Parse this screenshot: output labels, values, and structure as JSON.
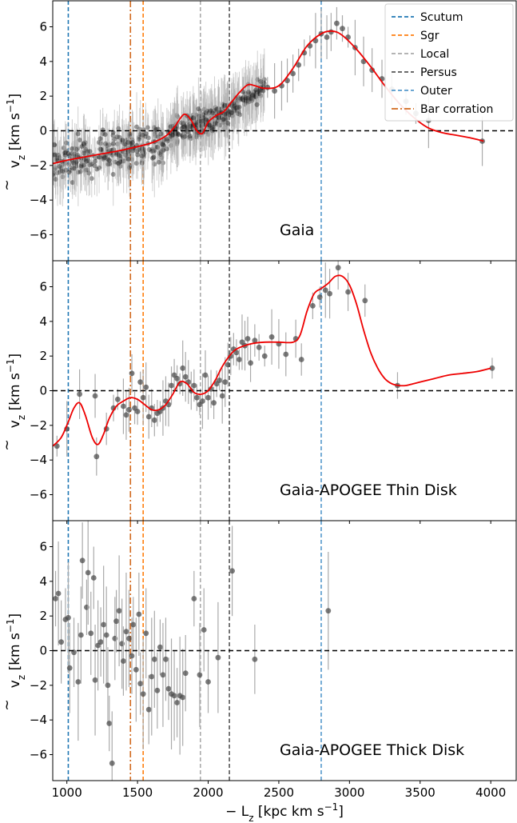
{
  "chart_data": {
    "type": "scatter",
    "xlabel": "− L_z [kpc km s⁻¹]",
    "xlabel_parts": {
      "main": "− L",
      "sub": "z",
      "unit": " [kpc km s",
      "sup": "−1",
      "close": "]"
    },
    "ylabel_parts": {
      "main": "v",
      "sub": "z",
      "unit": " [km s",
      "sup": "−1",
      "close": "]"
    },
    "xlim": [
      900,
      4180
    ],
    "ylim": [
      -7.5,
      7.5
    ],
    "x_ticks": [
      1000,
      1500,
      2000,
      2500,
      3000,
      3500,
      4000
    ],
    "x_tick_labels": [
      "1000",
      "1500",
      "2000",
      "2500",
      "3000",
      "3500",
      "4000"
    ],
    "y_ticks": [
      -6,
      -4,
      -2,
      0,
      2,
      4,
      6
    ],
    "y_tick_labels": [
      "−6",
      "−4",
      "−2",
      "0",
      "2",
      "4",
      "6"
    ],
    "grid": false,
    "legend_position": "top-right",
    "vlines": [
      {
        "name": "Scutum",
        "x": 1010,
        "color": "#1f77b4",
        "style": "dashed"
      },
      {
        "name": "Sgr",
        "x": 1540,
        "color": "#ff7f0e",
        "style": "dashed"
      },
      {
        "name": "Local",
        "x": 1945,
        "color": "#aaaaaa",
        "style": "dashed"
      },
      {
        "name": "Persus",
        "x": 2150,
        "color": "#555555",
        "style": "dashed"
      },
      {
        "name": "Outer",
        "x": 2800,
        "color": "#5599cc",
        "style": "dashed"
      },
      {
        "name": "Bar corration",
        "x": 1450,
        "color": "#d2691e",
        "style": "dashdot"
      }
    ],
    "zero_line": {
      "y": 0,
      "color": "#000000",
      "style": "dashed"
    },
    "fit_color": "#ee0000",
    "panels": [
      {
        "label": "Gaia",
        "show_legend": true,
        "dense_clouds": [
          {
            "x_range": [
              900,
              1700
            ],
            "center": [
              -1.9,
              -0.6
            ],
            "spread": 0.9,
            "count": 260
          },
          {
            "x_range": [
              1700,
              2150
            ],
            "center": [
              -0.3,
              1.0
            ],
            "spread": 0.6,
            "count": 220
          },
          {
            "x_range": [
              2150,
              2400
            ],
            "center": [
              1.2,
              2.4
            ],
            "spread": 0.5,
            "count": 90
          }
        ],
        "points": [
          {
            "x": 2420,
            "y": 2.5
          },
          {
            "x": 2470,
            "y": 2.3
          },
          {
            "x": 2520,
            "y": 2.6
          },
          {
            "x": 2560,
            "y": 2.9
          },
          {
            "x": 2600,
            "y": 3.3
          },
          {
            "x": 2640,
            "y": 3.8
          },
          {
            "x": 2680,
            "y": 4.5
          },
          {
            "x": 2720,
            "y": 4.9
          },
          {
            "x": 2760,
            "y": 5.2
          },
          {
            "x": 2800,
            "y": 5.6
          },
          {
            "x": 2840,
            "y": 5.4
          },
          {
            "x": 2870,
            "y": 5.7
          },
          {
            "x": 2910,
            "y": 6.2
          },
          {
            "x": 2950,
            "y": 5.9
          },
          {
            "x": 2990,
            "y": 5.4
          },
          {
            "x": 3040,
            "y": 4.8
          },
          {
            "x": 3100,
            "y": 4.0
          },
          {
            "x": 3160,
            "y": 3.5
          },
          {
            "x": 3230,
            "y": 3.0
          },
          {
            "x": 3300,
            "y": 2.4
          },
          {
            "x": 3400,
            "y": 1.7
          },
          {
            "x": 3470,
            "y": 1.0
          },
          {
            "x": 3560,
            "y": 0.6
          },
          {
            "x": 3940,
            "y": -0.6
          }
        ],
        "fit": {
          "x": [
            900,
            1000,
            1200,
            1400,
            1600,
            1700,
            1760,
            1810,
            1840,
            1880,
            1920,
            1960,
            2000,
            2060,
            2110,
            2160,
            2220,
            2280,
            2330,
            2400,
            2500,
            2600,
            2700,
            2800,
            2880,
            2950,
            3050,
            3150,
            3250,
            3350,
            3450,
            3550,
            3650,
            3750,
            3850,
            3950
          ],
          "y": [
            -1.9,
            -1.7,
            -1.4,
            -1.1,
            -0.7,
            -0.3,
            0.2,
            0.8,
            0.95,
            0.6,
            0.0,
            -0.15,
            0.5,
            0.9,
            1.1,
            1.6,
            2.2,
            2.65,
            2.6,
            2.45,
            2.6,
            3.6,
            4.9,
            5.6,
            5.75,
            5.5,
            4.7,
            3.7,
            2.6,
            1.6,
            0.8,
            0.2,
            -0.1,
            -0.25,
            -0.4,
            -0.6
          ]
        }
      },
      {
        "label": "Gaia-APOGEE Thin Disk",
        "show_legend": false,
        "dense_clouds": [],
        "points": [
          {
            "x": 930,
            "y": -3.2
          },
          {
            "x": 1000,
            "y": -2.2
          },
          {
            "x": 1090,
            "y": -0.2
          },
          {
            "x": 1200,
            "y": -0.3
          },
          {
            "x": 1210,
            "y": -3.8
          },
          {
            "x": 1280,
            "y": -2.2
          },
          {
            "x": 1330,
            "y": -1.0
          },
          {
            "x": 1360,
            "y": -0.5
          },
          {
            "x": 1400,
            "y": -0.9
          },
          {
            "x": 1420,
            "y": -1.4
          },
          {
            "x": 1440,
            "y": -1.1
          },
          {
            "x": 1460,
            "y": 1.0
          },
          {
            "x": 1480,
            "y": -1.0
          },
          {
            "x": 1500,
            "y": -1.2
          },
          {
            "x": 1520,
            "y": 0.5
          },
          {
            "x": 1540,
            "y": -0.4
          },
          {
            "x": 1560,
            "y": 0.2
          },
          {
            "x": 1580,
            "y": -1.5
          },
          {
            "x": 1600,
            "y": -1.0
          },
          {
            "x": 1620,
            "y": -1.7
          },
          {
            "x": 1640,
            "y": -1.3
          },
          {
            "x": 1660,
            "y": -1.2
          },
          {
            "x": 1680,
            "y": -1.0
          },
          {
            "x": 1700,
            "y": -0.6
          },
          {
            "x": 1720,
            "y": -0.8
          },
          {
            "x": 1740,
            "y": 0.3
          },
          {
            "x": 1760,
            "y": 0.9
          },
          {
            "x": 1780,
            "y": 0.7
          },
          {
            "x": 1800,
            "y": 0.4
          },
          {
            "x": 1820,
            "y": 1.3
          },
          {
            "x": 1840,
            "y": 0.8
          },
          {
            "x": 1860,
            "y": 0.5
          },
          {
            "x": 1880,
            "y": 0.0
          },
          {
            "x": 1900,
            "y": 0.3
          },
          {
            "x": 1920,
            "y": -0.4
          },
          {
            "x": 1940,
            "y": -0.8
          },
          {
            "x": 1960,
            "y": -0.6
          },
          {
            "x": 1980,
            "y": 0.9
          },
          {
            "x": 2000,
            "y": -0.4
          },
          {
            "x": 2020,
            "y": 0.1
          },
          {
            "x": 2040,
            "y": -0.7
          },
          {
            "x": 2060,
            "y": 0.4
          },
          {
            "x": 2080,
            "y": 0.6
          },
          {
            "x": 2100,
            "y": -0.3
          },
          {
            "x": 2120,
            "y": 0.5
          },
          {
            "x": 2140,
            "y": 1.5
          },
          {
            "x": 2160,
            "y": 2.0
          },
          {
            "x": 2180,
            "y": 2.4
          },
          {
            "x": 2200,
            "y": 2.2
          },
          {
            "x": 2220,
            "y": 1.8
          },
          {
            "x": 2240,
            "y": 2.8
          },
          {
            "x": 2260,
            "y": 2.6
          },
          {
            "x": 2280,
            "y": 3.0
          },
          {
            "x": 2300,
            "y": 1.6
          },
          {
            "x": 2330,
            "y": 2.9
          },
          {
            "x": 2360,
            "y": 2.5
          },
          {
            "x": 2400,
            "y": 2.0
          },
          {
            "x": 2450,
            "y": 3.1
          },
          {
            "x": 2500,
            "y": 2.7
          },
          {
            "x": 2550,
            "y": 2.1
          },
          {
            "x": 2620,
            "y": 3.0
          },
          {
            "x": 2660,
            "y": 1.8
          },
          {
            "x": 2740,
            "y": 4.9
          },
          {
            "x": 2790,
            "y": 5.4
          },
          {
            "x": 2830,
            "y": 5.8
          },
          {
            "x": 2860,
            "y": 5.6
          },
          {
            "x": 2920,
            "y": 7.1
          },
          {
            "x": 2990,
            "y": 5.7
          },
          {
            "x": 3110,
            "y": 5.2
          },
          {
            "x": 3340,
            "y": 0.3
          },
          {
            "x": 4010,
            "y": 1.3
          }
        ],
        "fit": {
          "x": [
            900,
            960,
            1010,
            1050,
            1090,
            1130,
            1180,
            1220,
            1260,
            1300,
            1350,
            1400,
            1450,
            1500,
            1550,
            1600,
            1650,
            1700,
            1750,
            1800,
            1850,
            1900,
            1950,
            2000,
            2050,
            2100,
            2150,
            2200,
            2300,
            2400,
            2500,
            2600,
            2650,
            2700,
            2750,
            2800,
            2850,
            2900,
            2950,
            3000,
            3050,
            3100,
            3150,
            3200,
            3250,
            3300,
            3350,
            3400,
            3450,
            3500,
            3600,
            3700,
            3800,
            3900,
            4000
          ],
          "y": [
            -3.2,
            -2.7,
            -1.8,
            -1.0,
            -0.7,
            -1.4,
            -2.7,
            -3.1,
            -2.5,
            -1.6,
            -0.9,
            -0.6,
            -0.4,
            -0.5,
            -0.8,
            -1.1,
            -1.1,
            -0.8,
            -0.2,
            0.5,
            0.4,
            -0.1,
            -0.2,
            0.0,
            0.6,
            1.4,
            2.0,
            2.4,
            2.7,
            2.8,
            2.8,
            2.8,
            3.2,
            4.6,
            5.6,
            5.9,
            6.2,
            6.6,
            6.6,
            6.1,
            5.0,
            3.5,
            2.2,
            1.3,
            0.7,
            0.4,
            0.3,
            0.3,
            0.4,
            0.5,
            0.7,
            0.9,
            1.0,
            1.1,
            1.3
          ]
        }
      },
      {
        "label": "Gaia-APOGEE Thick Disk",
        "show_legend": false,
        "dense_clouds": [],
        "points": [
          {
            "x": 920,
            "y": 3.0
          },
          {
            "x": 940,
            "y": 3.3
          },
          {
            "x": 960,
            "y": 0.5
          },
          {
            "x": 990,
            "y": 1.8
          },
          {
            "x": 1010,
            "y": 1.9
          },
          {
            "x": 1020,
            "y": -1.0
          },
          {
            "x": 1050,
            "y": -0.1
          },
          {
            "x": 1080,
            "y": -1.8
          },
          {
            "x": 1100,
            "y": 0.9
          },
          {
            "x": 1110,
            "y": 5.2
          },
          {
            "x": 1140,
            "y": 2.5
          },
          {
            "x": 1150,
            "y": 4.5
          },
          {
            "x": 1170,
            "y": 1.0
          },
          {
            "x": 1190,
            "y": 4.2
          },
          {
            "x": 1200,
            "y": -1.7
          },
          {
            "x": 1220,
            "y": 0.3
          },
          {
            "x": 1240,
            "y": 0.5
          },
          {
            "x": 1260,
            "y": 1.5
          },
          {
            "x": 1280,
            "y": 0.9
          },
          {
            "x": 1290,
            "y": -2.0
          },
          {
            "x": 1300,
            "y": -4.2
          },
          {
            "x": 1320,
            "y": -6.5
          },
          {
            "x": 1340,
            "y": 0.7
          },
          {
            "x": 1350,
            "y": 1.7
          },
          {
            "x": 1370,
            "y": 2.3
          },
          {
            "x": 1390,
            "y": 0.4
          },
          {
            "x": 1400,
            "y": -0.6
          },
          {
            "x": 1420,
            "y": 1.1
          },
          {
            "x": 1440,
            "y": 0.7
          },
          {
            "x": 1460,
            "y": -0.3
          },
          {
            "x": 1470,
            "y": 1.5
          },
          {
            "x": 1490,
            "y": -1.1
          },
          {
            "x": 1510,
            "y": 2.1
          },
          {
            "x": 1520,
            "y": -1.9
          },
          {
            "x": 1540,
            "y": -2.5
          },
          {
            "x": 1560,
            "y": 1.0
          },
          {
            "x": 1580,
            "y": -3.4
          },
          {
            "x": 1600,
            "y": -1.5
          },
          {
            "x": 1620,
            "y": -0.5
          },
          {
            "x": 1640,
            "y": -2.3
          },
          {
            "x": 1660,
            "y": 0.2
          },
          {
            "x": 1680,
            "y": -1.4
          },
          {
            "x": 1700,
            "y": -0.5
          },
          {
            "x": 1720,
            "y": -2.2
          },
          {
            "x": 1740,
            "y": -2.5
          },
          {
            "x": 1760,
            "y": -2.6
          },
          {
            "x": 1780,
            "y": -3.0
          },
          {
            "x": 1800,
            "y": -2.6
          },
          {
            "x": 1820,
            "y": -2.7
          },
          {
            "x": 1840,
            "y": -1.3
          },
          {
            "x": 1900,
            "y": 3.0
          },
          {
            "x": 1940,
            "y": -1.4
          },
          {
            "x": 1970,
            "y": 1.2
          },
          {
            "x": 2000,
            "y": -1.8
          },
          {
            "x": 2070,
            "y": -0.4
          },
          {
            "x": 2170,
            "y": 4.6
          },
          {
            "x": 2330,
            "y": -0.5
          },
          {
            "x": 2850,
            "y": 2.3
          }
        ],
        "fit": null
      }
    ]
  }
}
